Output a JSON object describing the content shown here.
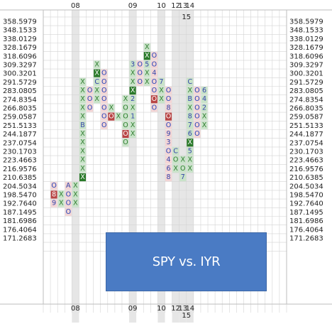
{
  "title": "SPY vs. IYR",
  "chart_data": {
    "type": "point-and-figure",
    "title": "SPY vs. IYR",
    "y_levels": [
      "358.5979",
      "348.1533",
      "338.0129",
      "328.1679",
      "318.6096",
      "309.3297",
      "300.3201",
      "291.5729",
      "283.0805",
      "274.8354",
      "266.8035",
      "259.0587",
      "251.5133",
      "244.1877",
      "237.0754",
      "230.1703",
      "223.4663",
      "216.9576",
      "210.6385",
      "204.5034",
      "198.5470",
      "192.7640",
      "187.1495",
      "181.6986",
      "176.4064",
      "171.2683"
    ],
    "year_labels": [
      {
        "col": 4,
        "text": "08"
      },
      {
        "col": 12,
        "text": "09"
      },
      {
        "col": 16,
        "text": "10"
      },
      {
        "col": 18,
        "text": "12"
      },
      {
        "col": 19,
        "text": "13"
      },
      {
        "col": 20,
        "text": "14"
      }
    ],
    "year_labels_sub": [
      {
        "col": 19.5,
        "text": "15"
      }
    ],
    "shaded_columns": [
      4,
      12,
      16,
      18,
      19,
      20
    ],
    "columns": [
      {
        "col": 1,
        "cells": [
          {
            "level": 204.5034,
            "t": "O"
          },
          {
            "level": 198.547,
            "t": "8",
            "hl": "red"
          },
          {
            "level": 192.764,
            "t": "9"
          }
        ]
      },
      {
        "col": 2,
        "cells": [
          {
            "level": 198.547,
            "t": "X"
          },
          {
            "level": 192.764,
            "t": "X"
          }
        ]
      },
      {
        "col": 3,
        "cells": [
          {
            "level": 204.5034,
            "t": "A"
          },
          {
            "level": 198.547,
            "t": "O"
          },
          {
            "level": 192.764,
            "t": "O"
          },
          {
            "level": 187.1495,
            "t": "O"
          }
        ]
      },
      {
        "col": 4,
        "cells": [
          {
            "level": 204.5034,
            "t": "X"
          },
          {
            "level": 198.547,
            "t": "X"
          },
          {
            "level": 192.764,
            "t": "X"
          }
        ]
      },
      {
        "col": 5,
        "cells": [
          {
            "level": 291.5729,
            "t": "X"
          },
          {
            "level": 283.0805,
            "t": "X"
          },
          {
            "level": 274.8354,
            "t": "X"
          },
          {
            "level": 266.8035,
            "t": "X"
          },
          {
            "level": 259.0587,
            "t": "X"
          },
          {
            "level": 251.5133,
            "t": "B"
          },
          {
            "level": 244.1877,
            "t": "X"
          },
          {
            "level": 237.0754,
            "t": "X"
          },
          {
            "level": 230.1703,
            "t": "X"
          },
          {
            "level": 223.4663,
            "t": "X"
          },
          {
            "level": 216.9576,
            "t": "X"
          },
          {
            "level": 210.6385,
            "t": "X",
            "hl": "green"
          }
        ]
      },
      {
        "col": 6,
        "cells": [
          {
            "level": 283.0805,
            "t": "O"
          },
          {
            "level": 274.8354,
            "t": "O"
          },
          {
            "level": 266.8035,
            "t": "O"
          }
        ]
      },
      {
        "col": 7,
        "cells": [
          {
            "level": 309.3297,
            "t": "X"
          },
          {
            "level": 300.3201,
            "t": "X",
            "hl": "green"
          },
          {
            "level": 291.5729,
            "t": "C"
          },
          {
            "level": 283.0805,
            "t": "X"
          },
          {
            "level": 274.8354,
            "t": "X"
          }
        ]
      },
      {
        "col": 8,
        "cells": [
          {
            "level": 300.3201,
            "t": "O"
          },
          {
            "level": 291.5729,
            "t": "O"
          },
          {
            "level": 283.0805,
            "t": "O"
          },
          {
            "level": 274.8354,
            "t": "O"
          },
          {
            "level": 266.8035,
            "t": "O"
          },
          {
            "level": 259.0587,
            "t": "O"
          },
          {
            "level": 251.5133,
            "t": "O"
          }
        ]
      },
      {
        "col": 9,
        "cells": [
          {
            "level": 266.8035,
            "t": "X"
          },
          {
            "level": 259.0587,
            "t": "O",
            "hl": "red"
          }
        ]
      },
      {
        "col": 10,
        "cells": [
          {
            "level": 259.0587,
            "t": "X"
          }
        ]
      },
      {
        "col": 11,
        "cells": [
          {
            "level": 274.8354,
            "t": "X"
          },
          {
            "level": 266.8035,
            "t": "O"
          },
          {
            "level": 259.0587,
            "t": "O"
          },
          {
            "level": 251.5133,
            "t": "O"
          },
          {
            "level": 244.1877,
            "t": "O",
            "hl": "red"
          },
          {
            "level": 237.0754,
            "t": "O"
          }
        ]
      },
      {
        "col": 12,
        "cells": [
          {
            "level": 309.3297,
            "t": "3"
          },
          {
            "level": 300.3201,
            "t": "X"
          },
          {
            "level": 291.5729,
            "t": "X"
          },
          {
            "level": 283.0805,
            "t": "X",
            "hl": "green"
          },
          {
            "level": 274.8354,
            "t": "2"
          },
          {
            "level": 266.8035,
            "t": "X"
          },
          {
            "level": 259.0587,
            "t": "1"
          },
          {
            "level": 251.5133,
            "t": "X"
          },
          {
            "level": 244.1877,
            "t": "X"
          }
        ]
      },
      {
        "col": 13,
        "cells": [
          {
            "level": 309.3297,
            "t": "O"
          },
          {
            "level": 300.3201,
            "t": "O"
          },
          {
            "level": 291.5729,
            "t": "O"
          }
        ]
      },
      {
        "col": 14,
        "cells": [
          {
            "level": 328.1679,
            "t": "X"
          },
          {
            "level": 318.6096,
            "t": "X",
            "hl": "green"
          },
          {
            "level": 309.3297,
            "t": "5"
          },
          {
            "level": 300.3201,
            "t": "X"
          },
          {
            "level": 291.5729,
            "t": "X"
          }
        ]
      },
      {
        "col": 15,
        "cells": [
          {
            "level": 318.6096,
            "t": "O"
          },
          {
            "level": 309.3297,
            "t": "O"
          },
          {
            "level": 300.3201,
            "t": "4"
          },
          {
            "level": 291.5729,
            "t": "O"
          },
          {
            "level": 283.0805,
            "t": "O"
          },
          {
            "level": 274.8354,
            "t": "O",
            "hl": "red"
          },
          {
            "level": 266.8035,
            "t": "O"
          }
        ]
      },
      {
        "col": 16,
        "cells": [
          {
            "level": 291.5729,
            "t": "7"
          },
          {
            "level": 283.0805,
            "t": "X"
          },
          {
            "level": 274.8354,
            "t": "X"
          }
        ]
      },
      {
        "col": 17,
        "cells": [
          {
            "level": 283.0805,
            "t": "O"
          },
          {
            "level": 274.8354,
            "t": "O"
          },
          {
            "level": 266.8035,
            "t": "8"
          },
          {
            "level": 259.0587,
            "t": "O",
            "hl": "red"
          },
          {
            "level": 251.5133,
            "t": "O"
          },
          {
            "level": 244.1877,
            "t": "9"
          },
          {
            "level": 237.0754,
            "t": "3"
          },
          {
            "level": 230.1703,
            "t": "O"
          },
          {
            "level": 223.4663,
            "t": "4"
          },
          {
            "level": 216.9576,
            "t": "6"
          },
          {
            "level": 210.6385,
            "t": "8"
          }
        ]
      },
      {
        "col": 18,
        "cells": [
          {
            "level": 230.1703,
            "t": "C"
          },
          {
            "level": 223.4663,
            "t": "O"
          },
          {
            "level": 216.9576,
            "t": "X"
          }
        ]
      },
      {
        "col": 19,
        "cells": [
          {
            "level": 223.4663,
            "t": "X"
          },
          {
            "level": 216.9576,
            "t": "O"
          },
          {
            "level": 210.6385,
            "t": "7"
          }
        ]
      },
      {
        "col": 20,
        "cells": [
          {
            "level": 291.5729,
            "t": "C"
          },
          {
            "level": 283.0805,
            "t": "X"
          },
          {
            "level": 274.8354,
            "t": "B"
          },
          {
            "level": 266.8035,
            "t": "X"
          },
          {
            "level": 259.0587,
            "t": "8"
          },
          {
            "level": 251.5133,
            "t": "7"
          },
          {
            "level": 244.1877,
            "t": "6"
          },
          {
            "level": 237.0754,
            "t": "X",
            "hl": "green"
          },
          {
            "level": 230.1703,
            "t": "5"
          },
          {
            "level": 223.4663,
            "t": "X"
          },
          {
            "level": 216.9576,
            "t": "X"
          }
        ]
      },
      {
        "col": 21,
        "cells": [
          {
            "level": 283.0805,
            "t": "O"
          },
          {
            "level": 274.8354,
            "t": "O"
          },
          {
            "level": 266.8035,
            "t": "O"
          },
          {
            "level": 259.0587,
            "t": "O"
          },
          {
            "level": 251.5133,
            "t": "O"
          },
          {
            "level": 244.1877,
            "t": "O"
          }
        ]
      },
      {
        "col": 22,
        "cells": [
          {
            "level": 283.0805,
            "t": "6"
          },
          {
            "level": 274.8354,
            "t": "4"
          },
          {
            "level": 266.8035,
            "t": "2"
          },
          {
            "level": 259.0587,
            "t": "X"
          },
          {
            "level": 251.5133,
            "t": "X"
          }
        ]
      }
    ],
    "colors": {
      "x": "#2f7d2f",
      "o": "#2244bb",
      "digit": "#3344aa",
      "shade": "#e6e6e6",
      "x_fill": "#c9e3c9",
      "o_fill": "#f3d5d5",
      "hl_green": "#2a7a2a",
      "hl_red": "#b84545",
      "banner": "#4a7bc4"
    }
  }
}
